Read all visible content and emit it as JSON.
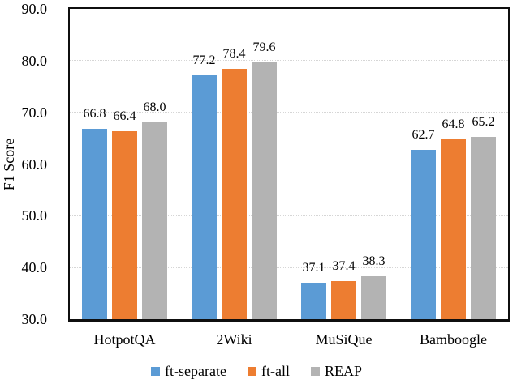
{
  "chart_data": {
    "type": "bar",
    "title": "",
    "xlabel": "",
    "ylabel": "F1 Score",
    "categories": [
      "HotpotQA",
      "2Wiki",
      "MuSiQue",
      "Bamboogle"
    ],
    "series": [
      {
        "name": "ft-separate",
        "color": "#5B9BD5",
        "values": [
          66.8,
          77.2,
          37.1,
          62.7
        ]
      },
      {
        "name": "ft-all",
        "color": "#ED7D31",
        "values": [
          66.4,
          78.4,
          37.4,
          64.8
        ]
      },
      {
        "name": "REAP",
        "color": "#B3B3B3",
        "values": [
          68.0,
          79.6,
          38.3,
          65.2
        ]
      }
    ],
    "ylim": [
      30,
      90
    ],
    "ytick_step": 10,
    "ytick_labels": [
      "30.0",
      "40.0",
      "50.0",
      "60.0",
      "70.0",
      "80.0",
      "90.0"
    ],
    "grid": true,
    "gridline_color": "#d6d6d6",
    "axis_border_color": "#0f0f0f",
    "legend_position": "bottom",
    "data_labels": true,
    "data_label_format": "one_decimal"
  }
}
